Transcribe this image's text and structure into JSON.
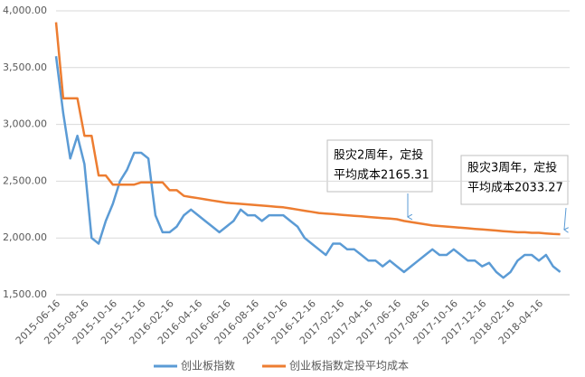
{
  "chart_data": {
    "type": "line",
    "categories": [
      "2015-06-16",
      null,
      null,
      null,
      "2015-08-16",
      null,
      null,
      null,
      "2015-10-16",
      null,
      null,
      null,
      "2015-12-16",
      null,
      null,
      null,
      "2016-02-16",
      null,
      null,
      null,
      "2016-04-16",
      null,
      null,
      null,
      "2016-06-16",
      null,
      null,
      null,
      "2016-08-16",
      null,
      null,
      null,
      "2016-10-16",
      null,
      null,
      null,
      "2016-12-16",
      null,
      null,
      null,
      "2017-02-16",
      null,
      null,
      null,
      "2017-04-16",
      null,
      null,
      null,
      "2017-06-16",
      null,
      null,
      null,
      "2017-08-16",
      null,
      null,
      null,
      "2017-10-16",
      null,
      null,
      null,
      "2017-12-16",
      null,
      null,
      null,
      "2018-02-16",
      null,
      null,
      null,
      "2018-04-16",
      null,
      null,
      null
    ],
    "series": [
      {
        "name": "创业板指数",
        "color": "#5b9bd5",
        "values": [
          3600,
          3100,
          2700,
          2900,
          2650,
          2000,
          1950,
          2150,
          2300,
          2500,
          2600,
          2750,
          2750,
          2700,
          2200,
          2050,
          2050,
          2100,
          2200,
          2250,
          2200,
          2150,
          2100,
          2050,
          2100,
          2150,
          2250,
          2200,
          2200,
          2150,
          2200,
          2200,
          2200,
          2150,
          2100,
          2000,
          1950,
          1900,
          1850,
          1950,
          1950,
          1900,
          1900,
          1850,
          1800,
          1800,
          1750,
          1800,
          1750,
          1700,
          1750,
          1800,
          1850,
          1900,
          1850,
          1850,
          1900,
          1850,
          1800,
          1800,
          1750,
          1780,
          1700,
          1650,
          1700,
          1800,
          1850,
          1850,
          1800,
          1850,
          1750,
          1700
        ]
      },
      {
        "name": "创业板指数定投平均成本",
        "color": "#ed7d31",
        "values": [
          3900,
          3230,
          3230,
          3230,
          2900,
          2900,
          2550,
          2550,
          2470,
          2470,
          2470,
          2470,
          2490,
          2490,
          2490,
          2490,
          2420,
          2420,
          2370,
          2360,
          2350,
          2340,
          2330,
          2320,
          2310,
          2305,
          2300,
          2295,
          2290,
          2285,
          2280,
          2275,
          2270,
          2260,
          2250,
          2240,
          2230,
          2220,
          2215,
          2210,
          2205,
          2200,
          2195,
          2190,
          2185,
          2180,
          2175,
          2170,
          2165,
          2150,
          2140,
          2130,
          2120,
          2110,
          2105,
          2100,
          2095,
          2090,
          2085,
          2080,
          2075,
          2070,
          2065,
          2060,
          2055,
          2050,
          2050,
          2045,
          2045,
          2040,
          2035,
          2033
        ]
      }
    ],
    "ylim": [
      1500,
      4000
    ],
    "yticks": [
      {
        "value": 1500,
        "label": "1,500.00"
      },
      {
        "value": 2000,
        "label": "2,000.00"
      },
      {
        "value": 2500,
        "label": "2,500.00"
      },
      {
        "value": 3000,
        "label": "3,000.00"
      },
      {
        "value": 3500,
        "label": "3,500.00"
      },
      {
        "value": 4000,
        "label": "4,000.00"
      }
    ],
    "grid": true,
    "legend": "bottom",
    "annotations": [
      {
        "lines": [
          "股灾2周年，定投",
          "平均成本2165.31"
        ]
      },
      {
        "lines": [
          "股灾3周年，定投",
          "平均成本2033.27"
        ]
      }
    ]
  }
}
